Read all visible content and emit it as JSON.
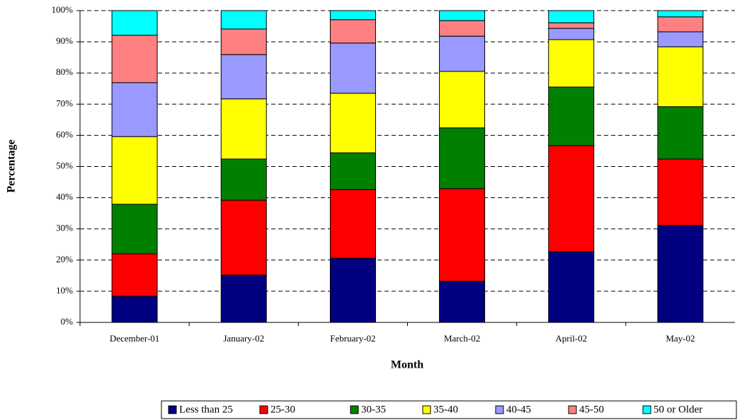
{
  "chart_data": {
    "type": "stacked_bar",
    "x_label": "Month",
    "y_label": "Percentage",
    "categories": [
      "December-01",
      "January-02",
      "February-02",
      "March-02",
      "April-02",
      "May-02"
    ],
    "series": [
      {
        "name": "Less than 25",
        "color": "#000080",
        "values": [
          8.4,
          15.2,
          20.6,
          13.2,
          22.7,
          31.1
        ]
      },
      {
        "name": "25-30",
        "color": "#ff0000",
        "values": [
          13.6,
          24.0,
          22.0,
          29.7,
          34.0,
          21.3
        ]
      },
      {
        "name": "30-35",
        "color": "#008000",
        "values": [
          15.9,
          13.2,
          11.8,
          19.5,
          18.8,
          16.8
        ]
      },
      {
        "name": "35-40",
        "color": "#ffff00",
        "values": [
          21.7,
          19.3,
          19.1,
          18.1,
          15.2,
          19.2
        ]
      },
      {
        "name": "40-45",
        "color": "#9999ff",
        "values": [
          17.3,
          14.2,
          16.1,
          11.3,
          3.6,
          4.8
        ]
      },
      {
        "name": "45-50",
        "color": "#ff8080",
        "values": [
          15.2,
          8.2,
          7.5,
          5.0,
          1.8,
          4.8
        ]
      },
      {
        "name": "50 or Older",
        "color": "#00ffff",
        "values": [
          7.9,
          5.9,
          2.9,
          3.2,
          3.9,
          2.0
        ]
      }
    ],
    "ylim": [
      0,
      100
    ],
    "yticks": [
      {
        "value": 0,
        "label": "0%"
      },
      {
        "value": 10,
        "label": "10%"
      },
      {
        "value": 20,
        "label": "20%"
      },
      {
        "value": 30,
        "label": "30%"
      },
      {
        "value": 40,
        "label": "40%"
      },
      {
        "value": 50,
        "label": "50%"
      },
      {
        "value": 60,
        "label": "60%"
      },
      {
        "value": 70,
        "label": "70%"
      },
      {
        "value": 80,
        "label": "80%"
      },
      {
        "value": 90,
        "label": "90%"
      },
      {
        "value": 100,
        "label": "100%"
      }
    ],
    "grid": true,
    "legend": "bottom"
  }
}
